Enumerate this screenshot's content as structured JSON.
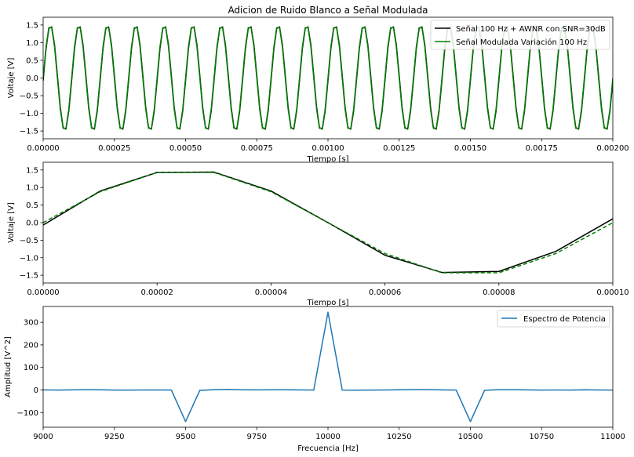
{
  "colors": {
    "black": "#000000",
    "green": "#008000",
    "blue": "#1f77b4",
    "legend_border": "#cccccc"
  },
  "chart_data": [
    {
      "type": "line",
      "title": "Adicion de Ruido Blanco a Señal Modulada",
      "xlabel": "Tiempo [s]",
      "ylabel": "Voltaje [V]",
      "xlim": [
        0,
        0.002
      ],
      "ylim": [
        -1.72,
        1.72
      ],
      "xticks": [
        0,
        0.00025,
        0.0005,
        0.00075,
        0.001,
        0.00125,
        0.0015,
        0.00175,
        0.002
      ],
      "xtick_labels": [
        "0.00000",
        "0.00025",
        "0.00050",
        "0.00075",
        "0.00100",
        "0.00125",
        "0.00150",
        "0.00175",
        "0.00200"
      ],
      "yticks": [
        -1.5,
        -1.0,
        -0.5,
        0.0,
        0.5,
        1.0,
        1.5
      ],
      "ytick_labels": [
        "−1.5",
        "−1.0",
        "−0.5",
        "0.0",
        "0.5",
        "1.0",
        "1.5"
      ],
      "legend": {
        "position": "top-right"
      },
      "series": [
        {
          "name": "Señal 100 Hz + AWNR con SNR=30dB",
          "color": "#000000",
          "style": "solid",
          "signal": {
            "amplitude": 1.5,
            "frequency_hz": 10000,
            "sample_step_s": 1e-05,
            "phase_rad": -0.05
          }
        },
        {
          "name": "Señal Modulada Variación 100 Hz",
          "color": "#008000",
          "style": "solid",
          "signal": {
            "amplitude": 1.5,
            "frequency_hz": 10000,
            "sample_step_s": 1e-05,
            "phase_rad": 0
          }
        }
      ]
    },
    {
      "type": "line",
      "title": "",
      "xlabel": "Tiempo [s]",
      "ylabel": "Voltaje [V]",
      "xlim": [
        0,
        0.0001
      ],
      "ylim": [
        -1.72,
        1.72
      ],
      "xticks": [
        0,
        2e-05,
        4e-05,
        6e-05,
        8e-05,
        0.0001
      ],
      "xtick_labels": [
        "0.00000",
        "0.00002",
        "0.00004",
        "0.00006",
        "0.00008",
        "0.00010"
      ],
      "yticks": [
        -1.5,
        -1.0,
        -0.5,
        0.0,
        0.5,
        1.0,
        1.5
      ],
      "ytick_labels": [
        "−1.5",
        "−1.0",
        "−0.5",
        "0.0",
        "0.5",
        "1.0",
        "1.5"
      ],
      "series": [
        {
          "color": "#000000",
          "style": "solid",
          "x": [
            0,
            1e-05,
            2e-05,
            3e-05,
            4e-05,
            5e-05,
            6e-05,
            7e-05,
            8e-05,
            9e-05,
            0.0001
          ],
          "y": [
            -0.07,
            0.9,
            1.43,
            1.44,
            0.9,
            0.0,
            -0.93,
            -1.42,
            -1.39,
            -0.82,
            0.11
          ]
        },
        {
          "color": "#008000",
          "style": "dashed",
          "x": [
            0,
            1e-05,
            2e-05,
            3e-05,
            4e-05,
            5e-05,
            6e-05,
            7e-05,
            8e-05,
            9e-05,
            0.0001
          ],
          "y": [
            0.0,
            0.88,
            1.43,
            1.43,
            0.88,
            0.0,
            -0.88,
            -1.43,
            -1.43,
            -0.88,
            0.0
          ]
        }
      ]
    },
    {
      "type": "line",
      "title": "",
      "xlabel": "Frecuencia [Hz]",
      "ylabel": "Amplitud [V^2]",
      "xlim": [
        9000,
        11000
      ],
      "ylim": [
        -165,
        370
      ],
      "xticks": [
        9000,
        9250,
        9500,
        9750,
        10000,
        10250,
        10500,
        10750,
        11000
      ],
      "xtick_labels": [
        "9000",
        "9250",
        "9500",
        "9750",
        "10000",
        "10250",
        "10500",
        "10750",
        "11000"
      ],
      "yticks": [
        -100,
        0,
        100,
        200,
        300
      ],
      "ytick_labels": [
        "−100",
        "0",
        "100",
        "200",
        "300"
      ],
      "legend": {
        "position": "top-right"
      },
      "series": [
        {
          "name": "Espectro de Potencia",
          "color": "#1f77b4",
          "style": "solid",
          "x": [
            9000,
            9050,
            9100,
            9150,
            9200,
            9250,
            9300,
            9350,
            9400,
            9450,
            9500,
            9550,
            9600,
            9650,
            9700,
            9750,
            9800,
            9850,
            9900,
            9950,
            10000,
            10050,
            10100,
            10150,
            10200,
            10250,
            10300,
            10350,
            10400,
            10450,
            10500,
            10550,
            10600,
            10650,
            10700,
            10750,
            10800,
            10850,
            10900,
            10950,
            11000
          ],
          "y": [
            0.5,
            -0.5,
            0.3,
            1.2,
            0.8,
            -0.4,
            -0.6,
            0.2,
            0.1,
            -0.2,
            -140,
            -1.5,
            1.2,
            2.5,
            1.0,
            0.3,
            0.8,
            1.1,
            0.4,
            -0.3,
            345,
            -0.5,
            -0.8,
            -0.3,
            0.2,
            0.9,
            1.6,
            1.8,
            0.6,
            -0.4,
            -140,
            -1.2,
            1.4,
            1.2,
            0.3,
            -0.6,
            -0.2,
            -0.5,
            0.7,
            0.2,
            -0.6
          ]
        }
      ]
    }
  ]
}
